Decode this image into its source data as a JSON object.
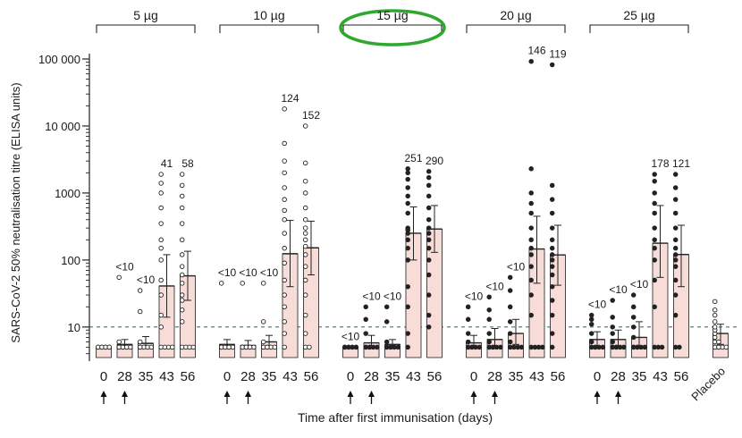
{
  "chart_data": {
    "type": "bar",
    "title": "",
    "ylabel": "SARS-CoV-2 50% neutralisation titre (ELISA units)",
    "xlabel": "Time after first immunisation (days)",
    "yscale": "log",
    "ylim": [
      3.5,
      100000
    ],
    "yticks": [
      {
        "value": 100000,
        "label": "100 000"
      },
      {
        "value": 10000,
        "label": "10 000"
      },
      {
        "value": 1000,
        "label": "1000"
      },
      {
        "value": 100,
        "label": "100"
      },
      {
        "value": 10,
        "label": "10"
      }
    ],
    "threshold": 10,
    "bar_color": "#f8dcd8",
    "bar_edge": "#333333",
    "highlight_color": "#2ea82e",
    "highlighted_group": "15 µg",
    "groups": [
      {
        "label": "5 µg",
        "filled": false,
        "bars": [
          {
            "day": "0",
            "gmt": 5,
            "ci": [
              5,
              5
            ],
            "label": "",
            "booster": true,
            "points": [
              5,
              5,
              5,
              5,
              5,
              5,
              5,
              5
            ]
          },
          {
            "day": "28",
            "gmt": 5.5,
            "ci": [
              4.8,
              6.5
            ],
            "label": "<10",
            "booster": true,
            "points": [
              5,
              5,
              5,
              5,
              5,
              5,
              5,
              6,
              55
            ]
          },
          {
            "day": "35",
            "gmt": 5.7,
            "ci": [
              4.8,
              7.2
            ],
            "label": "<10",
            "booster": false,
            "points": [
              5,
              5,
              5,
              5,
              5,
              6,
              17,
              35
            ]
          },
          {
            "day": "43",
            "gmt": 41,
            "ci": [
              14,
              120
            ],
            "label": "41",
            "booster": false,
            "points": [
              5,
              5,
              5,
              5,
              10,
              15,
              30,
              50,
              100,
              150,
              200,
              350,
              600,
              1000,
              1400,
              1900
            ]
          },
          {
            "day": "56",
            "gmt": 58,
            "ci": [
              25,
              135
            ],
            "label": "58",
            "booster": false,
            "points": [
              5,
              5,
              5,
              5,
              12,
              18,
              25,
              30,
              45,
              60,
              80,
              120,
              200,
              350,
              600,
              900,
              1300,
              1900
            ]
          }
        ]
      },
      {
        "label": "10 µg",
        "filled": false,
        "bars": [
          {
            "day": "0",
            "gmt": 5.5,
            "ci": [
              4.8,
              6.5
            ],
            "label": "<10",
            "booster": true,
            "points": [
              5,
              5,
              5,
              5,
              5,
              5,
              5,
              45
            ]
          },
          {
            "day": "28",
            "gmt": 5.3,
            "ci": [
              4.8,
              6.3
            ],
            "label": "<10",
            "booster": true,
            "points": [
              5,
              5,
              5,
              5,
              5,
              5,
              5,
              45
            ]
          },
          {
            "day": "35",
            "gmt": 6,
            "ci": [
              4.8,
              7.5
            ],
            "label": "<10",
            "booster": false,
            "points": [
              5,
              5,
              5,
              5,
              5,
              5,
              6,
              12,
              45
            ]
          },
          {
            "day": "43",
            "gmt": 124,
            "ci": [
              40,
              390
            ],
            "label": "124",
            "booster": false,
            "points": [
              5,
              8,
              12,
              20,
              30,
              50,
              90,
              150,
              250,
              400,
              550,
              800,
              1200,
              2000,
              3000,
              5500,
              18000
            ]
          },
          {
            "day": "56",
            "gmt": 152,
            "ci": [
              60,
              380
            ],
            "label": "152",
            "booster": false,
            "points": [
              5,
              5,
              8,
              15,
              30,
              50,
              80,
              120,
              160,
              200,
              250,
              300,
              400,
              600,
              1000,
              1500,
              2800,
              10000
            ]
          }
        ]
      },
      {
        "label": "15 µg",
        "filled": true,
        "bars": [
          {
            "day": "0",
            "gmt": 5,
            "ci": [
              5,
              5
            ],
            "label": "<10",
            "booster": true,
            "points": [
              5,
              5,
              5,
              5,
              5,
              5,
              5,
              5,
              5
            ]
          },
          {
            "day": "28",
            "gmt": 5.8,
            "ci": [
              4.8,
              7.5
            ],
            "label": "<10",
            "booster": true,
            "points": [
              5,
              5,
              5,
              5,
              5,
              5,
              8,
              13,
              20
            ]
          },
          {
            "day": "35",
            "gmt": 5.5,
            "ci": [
              4.8,
              6.5
            ],
            "label": "<10",
            "booster": false,
            "points": [
              5,
              5,
              5,
              5,
              5,
              5,
              6,
              12,
              20
            ]
          },
          {
            "day": "43",
            "gmt": 251,
            "ci": [
              100,
              620
            ],
            "label": "251",
            "booster": false,
            "points": [
              5,
              8,
              20,
              40,
              100,
              150,
              200,
              250,
              280,
              300,
              500,
              700,
              900,
              1200,
              1600,
              2000,
              2300
            ]
          },
          {
            "day": "56",
            "gmt": 290,
            "ci": [
              130,
              650
            ],
            "label": "290",
            "booster": false,
            "points": [
              10,
              15,
              30,
              60,
              100,
              150,
              200,
              250,
              300,
              400,
              600,
              900,
              1300,
              1700,
              2100
            ]
          }
        ]
      },
      {
        "label": "20 µg",
        "filled": true,
        "bars": [
          {
            "day": "0",
            "gmt": 5.8,
            "ci": [
              4.8,
              7.5
            ],
            "label": "<10",
            "booster": true,
            "points": [
              5,
              5,
              5,
              5,
              5,
              5,
              6,
              8,
              13,
              20
            ]
          },
          {
            "day": "28",
            "gmt": 6.5,
            "ci": [
              4.8,
              9.5
            ],
            "label": "<10",
            "booster": true,
            "points": [
              5,
              5,
              5,
              5,
              5,
              5,
              6,
              8,
              13,
              18,
              28
            ]
          },
          {
            "day": "35",
            "gmt": 8,
            "ci": [
              5.5,
              13
            ],
            "label": "<10",
            "booster": false,
            "points": [
              5,
              5,
              5,
              5,
              5,
              6,
              8,
              12,
              20,
              35,
              55
            ]
          },
          {
            "day": "43",
            "gmt": 146,
            "ci": [
              45,
              450
            ],
            "label": "146",
            "booster": false,
            "points": [
              5,
              5,
              5,
              5,
              15,
              30,
              50,
              80,
              120,
              150,
              200,
              300,
              500,
              700,
              1000,
              2300,
              92000
            ]
          },
          {
            "day": "56",
            "gmt": 119,
            "ci": [
              42,
              330
            ],
            "label": "119",
            "booster": false,
            "points": [
              5,
              8,
              15,
              25,
              40,
              60,
              80,
              100,
              120,
              150,
              200,
              300,
              500,
              800,
              1300,
              82000
            ]
          }
        ]
      },
      {
        "label": "25 µg",
        "filled": true,
        "bars": [
          {
            "day": "0",
            "gmt": 6.5,
            "ci": [
              4.8,
              8.5
            ],
            "label": "<10",
            "booster": true,
            "points": [
              5,
              5,
              5,
              5,
              5,
              5,
              6,
              8,
              11,
              13,
              15
            ]
          },
          {
            "day": "28",
            "gmt": 6.5,
            "ci": [
              4.8,
              9
            ],
            "label": "<10",
            "booster": true,
            "points": [
              5,
              5,
              5,
              5,
              5,
              5,
              6,
              8,
              10,
              14,
              25
            ]
          },
          {
            "day": "35",
            "gmt": 7,
            "ci": [
              4.8,
              12
            ],
            "label": "<10",
            "booster": false,
            "points": [
              5,
              5,
              5,
              5,
              5,
              5,
              7,
              10,
              14,
              20,
              30
            ]
          },
          {
            "day": "43",
            "gmt": 178,
            "ci": [
              55,
              650
            ],
            "label": "178",
            "booster": false,
            "points": [
              5,
              5,
              5,
              20,
              50,
              100,
              150,
              200,
              300,
              500,
              700,
              1000,
              1500,
              1900
            ]
          },
          {
            "day": "56",
            "gmt": 121,
            "ci": [
              40,
              330
            ],
            "label": "121",
            "booster": false,
            "points": [
              5,
              5,
              15,
              30,
              50,
              80,
              100,
              120,
              150,
              200,
              300,
              500,
              800,
              1200,
              1900
            ]
          }
        ]
      }
    ],
    "placebo": {
      "label": "Placebo",
      "gmt": 8,
      "ci": [
        5.5,
        11
      ],
      "points": [
        5,
        5,
        5,
        5,
        5,
        5,
        6,
        6,
        7,
        8,
        9,
        10,
        12,
        15,
        18,
        24
      ]
    }
  }
}
